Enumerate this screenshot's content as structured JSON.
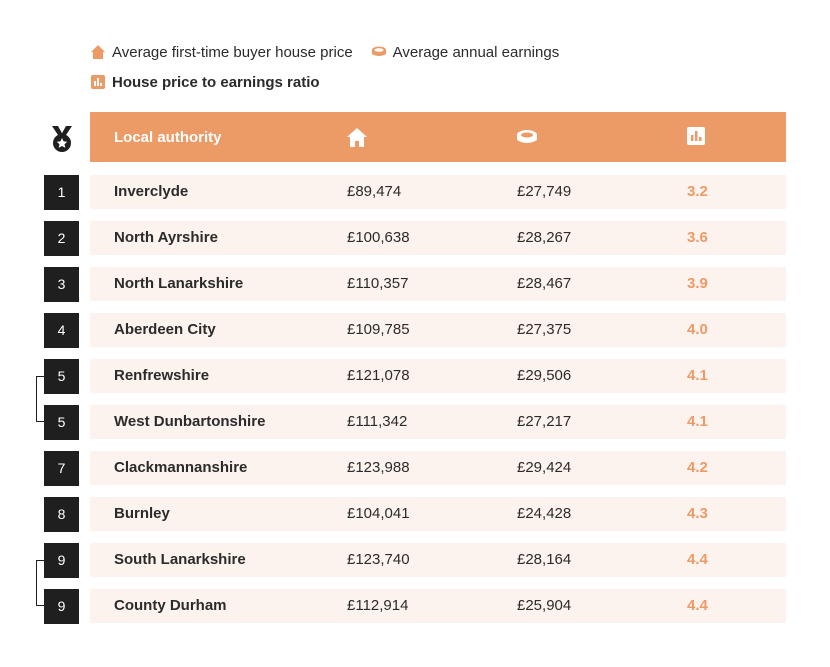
{
  "legend": {
    "house_price": "Average first-time buyer house price",
    "earnings": "Average annual earnings",
    "ratio": "House price to earnings ratio"
  },
  "header": {
    "local_authority": "Local authority"
  },
  "icons": {
    "rank": "medal-icon",
    "house_price": "house-icon",
    "earnings": "coins-icon",
    "ratio": "bar-chart-icon"
  },
  "colors": {
    "accent": "#ec9a66",
    "row_bg": "#fdf3ee",
    "rank_bg": "#1f1f1f"
  },
  "chart_data": {
    "type": "table",
    "columns": [
      "Local authority",
      "Average first-time buyer house price",
      "Average annual earnings",
      "House price to earnings ratio"
    ],
    "rows": [
      {
        "rank": "1",
        "name": "Inverclyde",
        "price": "£89,474",
        "earnings": "£27,749",
        "ratio": "3.2"
      },
      {
        "rank": "2",
        "name": "North Ayrshire",
        "price": "£100,638",
        "earnings": "£28,267",
        "ratio": "3.6"
      },
      {
        "rank": "3",
        "name": "North Lanarkshire",
        "price": "£110,357",
        "earnings": "£28,467",
        "ratio": "3.9"
      },
      {
        "rank": "4",
        "name": "Aberdeen City",
        "price": "£109,785",
        "earnings": "£27,375",
        "ratio": "4.0"
      },
      {
        "rank": "5",
        "name": "Renfrewshire",
        "price": "£121,078",
        "earnings": "£29,506",
        "ratio": "4.1"
      },
      {
        "rank": "5",
        "name": "West Dunbartonshire",
        "price": "£111,342",
        "earnings": "£27,217",
        "ratio": "4.1"
      },
      {
        "rank": "7",
        "name": "Clackmannanshire",
        "price": "£123,988",
        "earnings": "£29,424",
        "ratio": "4.2"
      },
      {
        "rank": "8",
        "name": "Burnley",
        "price": "£104,041",
        "earnings": "£24,428",
        "ratio": "4.3"
      },
      {
        "rank": "9",
        "name": "South Lanarkshire",
        "price": "£123,740",
        "earnings": "£28,164",
        "ratio": "4.4"
      },
      {
        "rank": "9",
        "name": "County Durham",
        "price": "£112,914",
        "earnings": "£25,904",
        "ratio": "4.4"
      }
    ]
  }
}
